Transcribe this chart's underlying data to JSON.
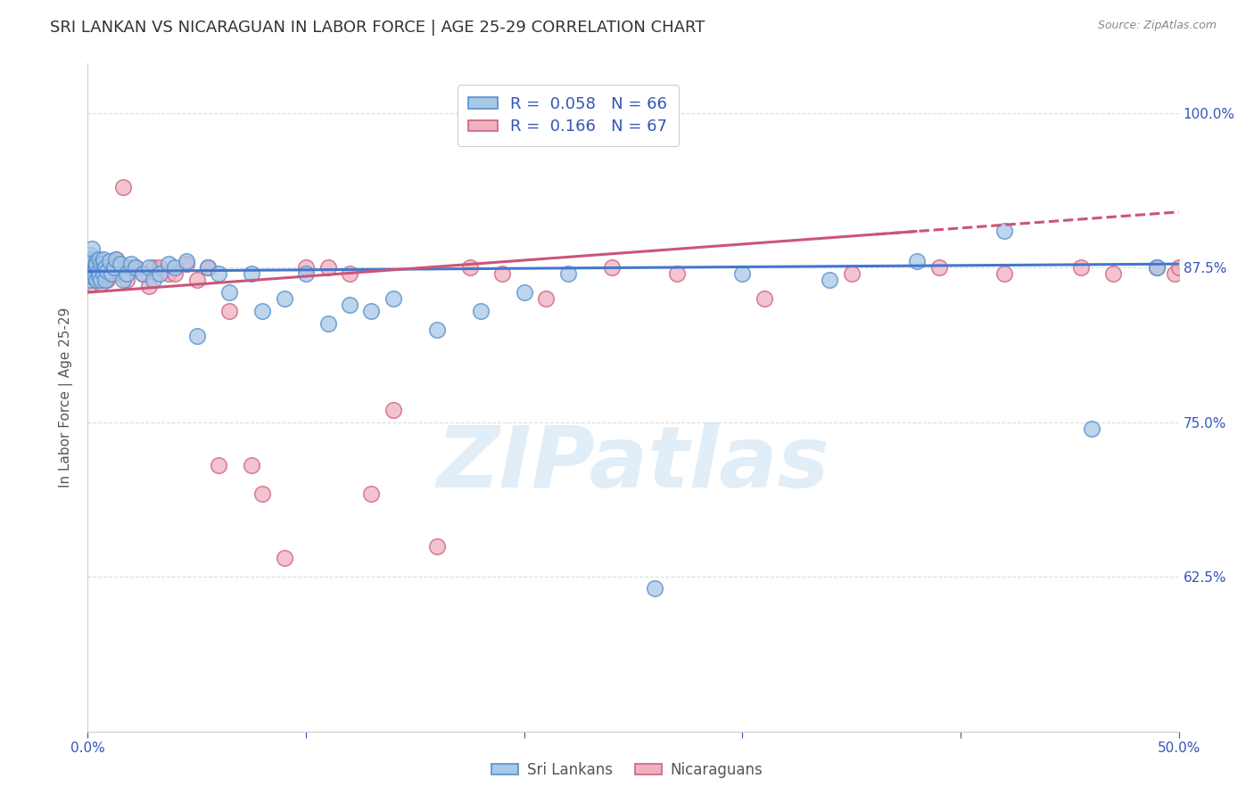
{
  "title": "SRI LANKAN VS NICARAGUAN IN LABOR FORCE | AGE 25-29 CORRELATION CHART",
  "source": "Source: ZipAtlas.com",
  "ylabel": "In Labor Force | Age 25-29",
  "xlim": [
    0.0,
    0.5
  ],
  "ylim": [
    0.5,
    1.04
  ],
  "yticks": [
    0.625,
    0.75,
    0.875,
    1.0
  ],
  "ytick_labels": [
    "62.5%",
    "75.0%",
    "87.5%",
    "100.0%"
  ],
  "xticks": [
    0.0,
    0.1,
    0.2,
    0.3,
    0.4,
    0.5
  ],
  "xtick_labels": [
    "0.0%",
    "",
    "",
    "",
    "",
    "50.0%"
  ],
  "blue_R": 0.058,
  "blue_N": 66,
  "pink_R": 0.166,
  "pink_N": 67,
  "blue_color": "#a8c8e8",
  "pink_color": "#f0b0c0",
  "blue_edge_color": "#5590cc",
  "pink_edge_color": "#d06080",
  "blue_line_color": "#4477cc",
  "pink_line_color": "#cc5577",
  "legend_text_color": "#3355bb",
  "watermark": "ZIPatlas",
  "background_color": "#ffffff",
  "grid_color": "#dddddd",
  "tick_color": "#3355bb",
  "title_fontsize": 13,
  "axis_label_fontsize": 11,
  "tick_fontsize": 11,
  "blue_scatter_x": [
    0.001,
    0.001,
    0.001,
    0.001,
    0.001,
    0.002,
    0.002,
    0.002,
    0.002,
    0.003,
    0.003,
    0.003,
    0.004,
    0.004,
    0.004,
    0.004,
    0.005,
    0.005,
    0.005,
    0.006,
    0.006,
    0.007,
    0.007,
    0.007,
    0.008,
    0.008,
    0.009,
    0.01,
    0.011,
    0.012,
    0.013,
    0.015,
    0.016,
    0.018,
    0.02,
    0.022,
    0.025,
    0.028,
    0.03,
    0.033,
    0.037,
    0.04,
    0.045,
    0.05,
    0.055,
    0.06,
    0.065,
    0.075,
    0.08,
    0.09,
    0.1,
    0.11,
    0.12,
    0.13,
    0.14,
    0.16,
    0.18,
    0.2,
    0.22,
    0.26,
    0.3,
    0.34,
    0.38,
    0.42,
    0.46,
    0.49
  ],
  "blue_scatter_y": [
    0.875,
    0.88,
    0.87,
    0.865,
    0.885,
    0.878,
    0.882,
    0.868,
    0.89,
    0.875,
    0.872,
    0.868,
    0.875,
    0.865,
    0.88,
    0.878,
    0.872,
    0.868,
    0.882,
    0.878,
    0.865,
    0.87,
    0.878,
    0.882,
    0.875,
    0.865,
    0.872,
    0.88,
    0.87,
    0.875,
    0.882,
    0.878,
    0.865,
    0.87,
    0.878,
    0.875,
    0.87,
    0.875,
    0.865,
    0.87,
    0.878,
    0.875,
    0.88,
    0.82,
    0.875,
    0.87,
    0.855,
    0.87,
    0.84,
    0.85,
    0.87,
    0.83,
    0.845,
    0.84,
    0.85,
    0.825,
    0.84,
    0.855,
    0.87,
    0.616,
    0.87,
    0.865,
    0.88,
    0.905,
    0.745,
    0.875
  ],
  "pink_scatter_x": [
    0.001,
    0.001,
    0.001,
    0.001,
    0.002,
    0.002,
    0.002,
    0.002,
    0.003,
    0.003,
    0.003,
    0.004,
    0.004,
    0.004,
    0.005,
    0.005,
    0.005,
    0.006,
    0.006,
    0.007,
    0.007,
    0.008,
    0.008,
    0.009,
    0.01,
    0.011,
    0.012,
    0.013,
    0.015,
    0.016,
    0.018,
    0.02,
    0.022,
    0.025,
    0.028,
    0.03,
    0.033,
    0.037,
    0.04,
    0.045,
    0.05,
    0.055,
    0.06,
    0.065,
    0.075,
    0.08,
    0.09,
    0.1,
    0.11,
    0.12,
    0.13,
    0.14,
    0.16,
    0.175,
    0.19,
    0.21,
    0.24,
    0.27,
    0.31,
    0.35,
    0.39,
    0.42,
    0.455,
    0.47,
    0.49,
    0.498,
    0.5
  ],
  "pink_scatter_y": [
    0.875,
    0.87,
    0.865,
    0.878,
    0.872,
    0.868,
    0.878,
    0.862,
    0.875,
    0.868,
    0.88,
    0.875,
    0.865,
    0.87,
    0.872,
    0.865,
    0.88,
    0.878,
    0.862,
    0.87,
    0.875,
    0.868,
    0.878,
    0.865,
    0.87,
    0.875,
    0.878,
    0.882,
    0.87,
    0.94,
    0.865,
    0.875,
    0.875,
    0.87,
    0.86,
    0.875,
    0.875,
    0.87,
    0.87,
    0.878,
    0.865,
    0.875,
    0.715,
    0.84,
    0.715,
    0.692,
    0.64,
    0.875,
    0.875,
    0.87,
    0.692,
    0.76,
    0.65,
    0.875,
    0.87,
    0.85,
    0.875,
    0.87,
    0.85,
    0.87,
    0.875,
    0.87,
    0.875,
    0.87,
    0.875,
    0.87,
    0.875
  ]
}
